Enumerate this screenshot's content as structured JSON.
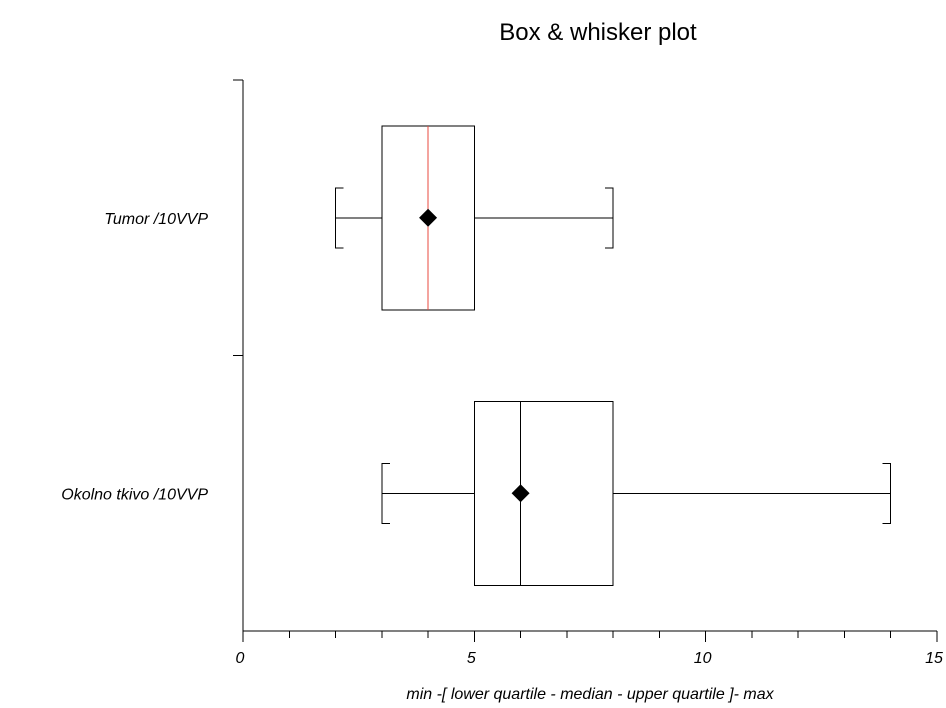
{
  "chart_data": {
    "type": "box",
    "title": "Box & whisker plot",
    "xlabel": "min -[ lower quartile - median - upper quartile ]- max",
    "ylabel": "",
    "xlim": [
      0,
      15
    ],
    "x_major_ticks": [
      0,
      5,
      10,
      15
    ],
    "x_minor_step": 1,
    "grid": false,
    "categories": [
      "Tumor /10VVP",
      "Okolno tkivo /10VVP"
    ],
    "boxes": [
      {
        "label": "Tumor /10VVP",
        "min": 2,
        "q1": 3,
        "median": 4,
        "q3": 5,
        "max": 8,
        "mean": 4,
        "median_color": "#e8483f"
      },
      {
        "label": "Okolno tkivo /10VVP",
        "min": 3,
        "q1": 5,
        "median": 6,
        "q3": 8,
        "max": 14,
        "mean": 6,
        "median_color": "#000000"
      }
    ],
    "colors": {
      "line": "#000000",
      "box_fill": "#ffffff",
      "mean_marker": "#000000"
    },
    "mean_marker_shape": "diamond"
  }
}
